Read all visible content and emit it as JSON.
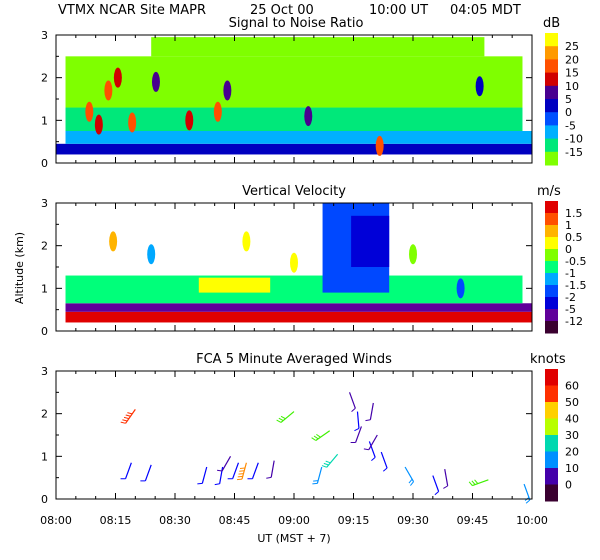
{
  "header": {
    "site": "VTMX  NCAR Site  MAPR",
    "date": "25 Oct 00",
    "time_ut": "10:00 UT",
    "time_local": "04:05  MDT"
  },
  "colors": {
    "scale_snr": [
      "#7fff00",
      "#00e87a",
      "#00b0ff",
      "#0050ff",
      "#0000c0",
      "#480090",
      "#d00000",
      "#ff5000",
      "#ff9a00",
      "#ffff00"
    ],
    "scale_vel": [
      "#3a0030",
      "#60009a",
      "#0000d8",
      "#0048ff",
      "#00a8ff",
      "#00ff7a",
      "#7fff00",
      "#ffff00",
      "#ffb400",
      "#ff5000",
      "#e00000"
    ],
    "scale_wind": [
      "#3a0030",
      "#4400aa",
      "#0000ff",
      "#0090ff",
      "#00d8b0",
      "#3ff000",
      "#b8ff00",
      "#ffd000",
      "#ff8a00",
      "#ff3000",
      "#e00000"
    ]
  },
  "chart_data": [
    {
      "type": "heatmap",
      "title": "Signal to Noise Ratio",
      "unit_label": "dB",
      "ylim": [
        0,
        3
      ],
      "yticks": [
        "0",
        "1",
        "2",
        "3"
      ],
      "colorbar_labels": [
        "25",
        "20",
        "15",
        "10",
        "5",
        "0",
        "-5",
        "-10",
        "-15"
      ],
      "bands": [
        {
          "t0": 0.0,
          "t1": 1.0,
          "h0": 0.2,
          "h1": 0.45,
          "c": 4
        },
        {
          "t0": 0.02,
          "t1": 1.0,
          "h0": 0.45,
          "h1": 0.75,
          "c": 2
        },
        {
          "t0": 0.02,
          "t1": 0.98,
          "h0": 0.75,
          "h1": 1.3,
          "c": 1
        },
        {
          "t0": 0.02,
          "t1": 0.98,
          "h0": 1.3,
          "h1": 2.5,
          "c": 0
        },
        {
          "t0": 0.2,
          "t1": 0.9,
          "h0": 2.5,
          "h1": 2.95,
          "c": 0
        }
      ],
      "blobs": [
        {
          "t": 0.07,
          "h": 1.2,
          "c": 7
        },
        {
          "t": 0.09,
          "h": 0.9,
          "c": 6
        },
        {
          "t": 0.11,
          "h": 1.7,
          "c": 7
        },
        {
          "t": 0.13,
          "h": 2.0,
          "c": 6
        },
        {
          "t": 0.16,
          "h": 0.95,
          "c": 7
        },
        {
          "t": 0.21,
          "h": 1.9,
          "c": 5
        },
        {
          "t": 0.28,
          "h": 1.0,
          "c": 6
        },
        {
          "t": 0.34,
          "h": 1.2,
          "c": 7
        },
        {
          "t": 0.36,
          "h": 1.7,
          "c": 5
        },
        {
          "t": 0.53,
          "h": 1.1,
          "c": 5
        },
        {
          "t": 0.68,
          "h": 0.4,
          "c": 7
        },
        {
          "t": 0.89,
          "h": 1.8,
          "c": 4
        }
      ]
    },
    {
      "type": "heatmap",
      "title": "Vertical Velocity",
      "unit_label": "m/s",
      "ylabel": "Altitude (km)",
      "ylim": [
        0,
        3
      ],
      "yticks": [
        "0",
        "1",
        "2",
        "3"
      ],
      "colorbar_labels": [
        "1.5",
        "1",
        "0.5",
        "0",
        "-0.5",
        "-1",
        "-1.5",
        "-2",
        "-5",
        "-12"
      ],
      "bands": [
        {
          "t0": 0.02,
          "t1": 1.0,
          "h0": 0.2,
          "h1": 0.45,
          "c": 10
        },
        {
          "t0": 0.02,
          "t1": 1.0,
          "h0": 0.45,
          "h1": 0.65,
          "c": 1
        },
        {
          "t0": 0.02,
          "t1": 0.98,
          "h0": 0.65,
          "h1": 1.3,
          "c": 5
        },
        {
          "t0": 0.3,
          "t1": 0.45,
          "h0": 0.9,
          "h1": 1.25,
          "c": 7
        },
        {
          "t0": 0.56,
          "t1": 0.7,
          "h0": 0.9,
          "h1": 3.0,
          "c": 3
        },
        {
          "t0": 0.62,
          "t1": 0.7,
          "h0": 1.5,
          "h1": 2.7,
          "c": 2
        }
      ],
      "blobs": [
        {
          "t": 0.12,
          "h": 2.1,
          "c": 8
        },
        {
          "t": 0.2,
          "h": 1.8,
          "c": 4
        },
        {
          "t": 0.4,
          "h": 2.1,
          "c": 7
        },
        {
          "t": 0.5,
          "h": 1.6,
          "c": 7
        },
        {
          "t": 0.75,
          "h": 1.8,
          "c": 6
        },
        {
          "t": 0.85,
          "h": 1.0,
          "c": 3
        }
      ]
    },
    {
      "type": "scatter",
      "title": "FCA 5 Minute Averaged Winds",
      "unit_label": "knots",
      "xlabel": "UT  (MST + 7)",
      "ylim": [
        0,
        3
      ],
      "yticks": [
        "0",
        "1",
        "2",
        "3"
      ],
      "xticks": [
        "08:00",
        "08:15",
        "08:30",
        "08:45",
        "09:00",
        "09:15",
        "09:30",
        "09:45",
        "10:00"
      ],
      "colorbar_labels": [
        "60",
        "50",
        "40",
        "30",
        "20",
        "10",
        "0"
      ],
      "barbs": [
        {
          "time": "08:19",
          "alt": 0.85,
          "dir": 200,
          "kt": 12
        },
        {
          "time": "08:20",
          "alt": 2.1,
          "dir": 215,
          "kt": 55
        },
        {
          "time": "08:24",
          "alt": 0.8,
          "dir": 200,
          "kt": 12
        },
        {
          "time": "08:38",
          "alt": 0.75,
          "dir": 195,
          "kt": 12
        },
        {
          "time": "08:42",
          "alt": 0.75,
          "dir": 190,
          "kt": 12
        },
        {
          "time": "08:44",
          "alt": 1.0,
          "dir": 210,
          "kt": 8
        },
        {
          "time": "08:46",
          "alt": 0.85,
          "dir": 200,
          "kt": 10
        },
        {
          "time": "08:48",
          "alt": 0.85,
          "dir": 195,
          "kt": 50
        },
        {
          "time": "08:51",
          "alt": 0.85,
          "dir": 200,
          "kt": 12
        },
        {
          "time": "08:55",
          "alt": 0.9,
          "dir": 190,
          "kt": 8
        },
        {
          "time": "09:00",
          "alt": 2.05,
          "dir": 230,
          "kt": 30
        },
        {
          "time": "09:07",
          "alt": 0.75,
          "dir": 195,
          "kt": 20
        },
        {
          "time": "09:09",
          "alt": 1.6,
          "dir": 235,
          "kt": 30
        },
        {
          "time": "09:11",
          "alt": 1.05,
          "dir": 220,
          "kt": 25
        },
        {
          "time": "09:14",
          "alt": 2.5,
          "dir": 160,
          "kt": 5
        },
        {
          "time": "09:16",
          "alt": 2.05,
          "dir": 175,
          "kt": 10
        },
        {
          "time": "09:17",
          "alt": 1.7,
          "dir": 200,
          "kt": 8
        },
        {
          "time": "09:19",
          "alt": 1.35,
          "dir": 160,
          "kt": 10
        },
        {
          "time": "09:20",
          "alt": 2.25,
          "dir": 190,
          "kt": 5
        },
        {
          "time": "09:21",
          "alt": 1.5,
          "dir": 210,
          "kt": 8
        },
        {
          "time": "09:22",
          "alt": 1.1,
          "dir": 160,
          "kt": 10
        },
        {
          "time": "09:28",
          "alt": 0.75,
          "dir": 150,
          "kt": 15
        },
        {
          "time": "09:35",
          "alt": 0.55,
          "dir": 160,
          "kt": 10
        },
        {
          "time": "09:38",
          "alt": 0.7,
          "dir": 170,
          "kt": 8
        },
        {
          "time": "09:49",
          "alt": 0.45,
          "dir": 250,
          "kt": 30
        },
        {
          "time": "09:58",
          "alt": 0.35,
          "dir": 160,
          "kt": 15
        }
      ]
    }
  ]
}
